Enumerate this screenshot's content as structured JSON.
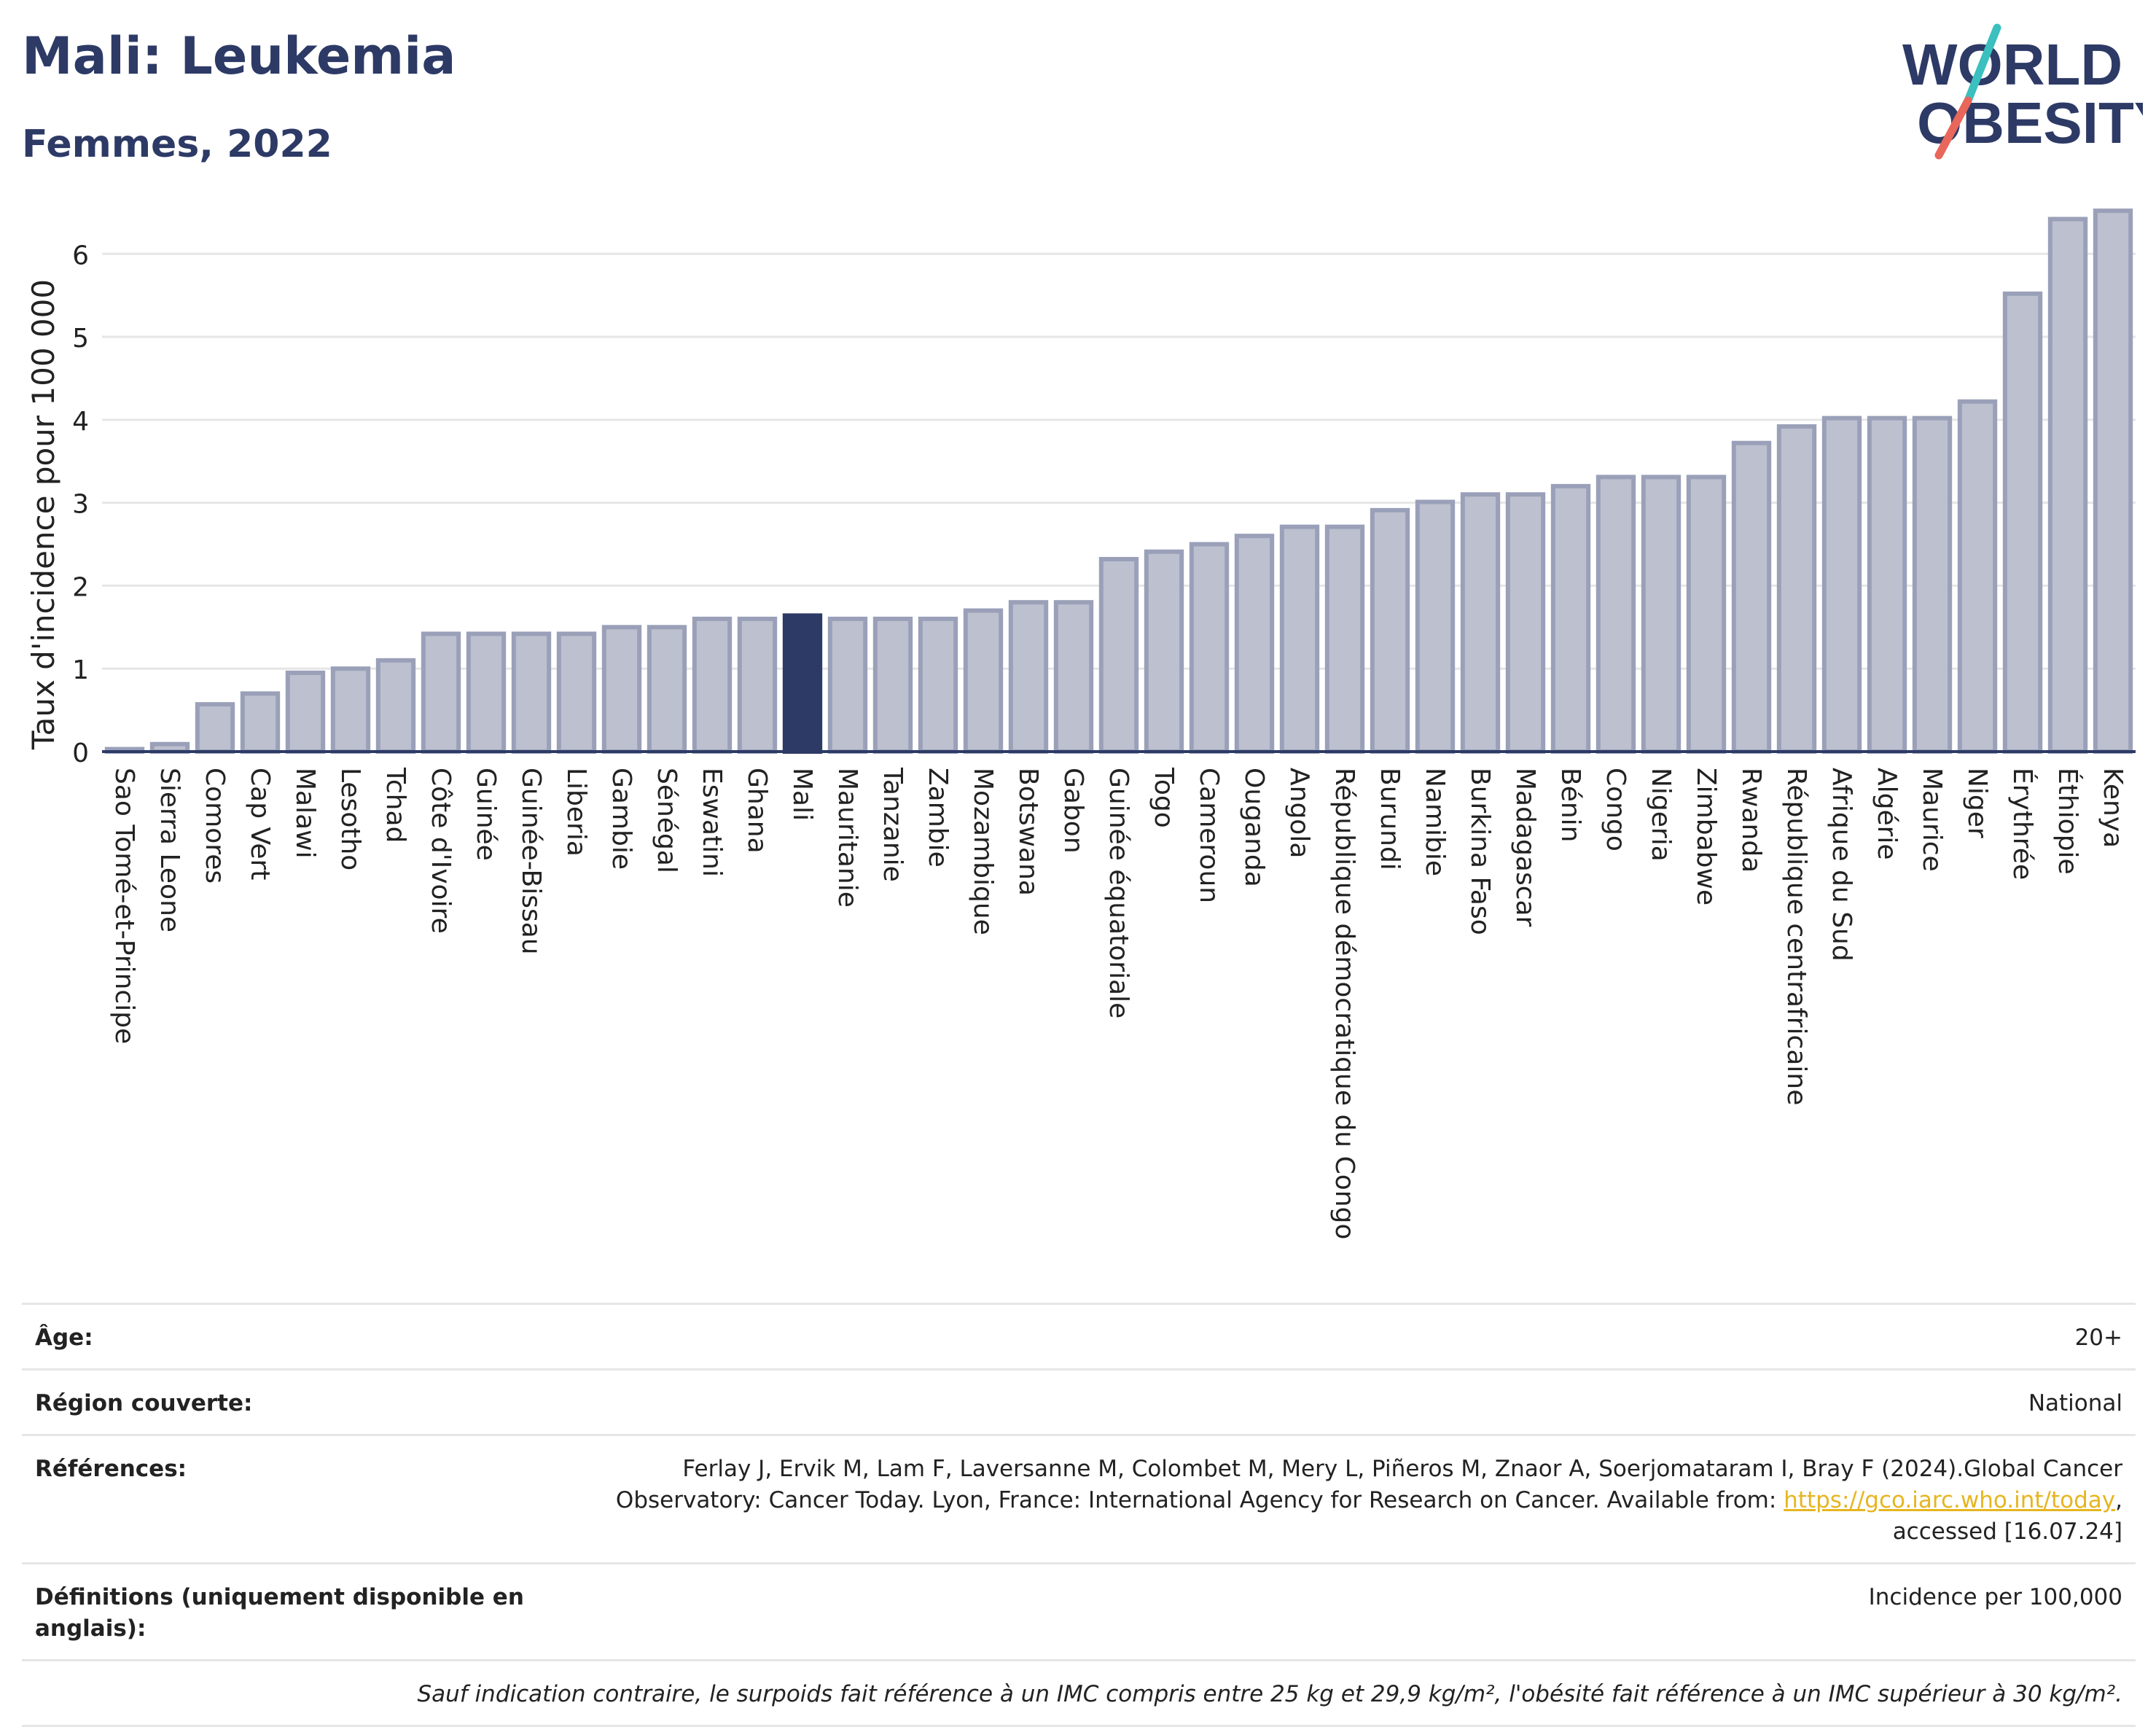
{
  "title": "Mali: Leukemia",
  "subtitle": "Femmes, 2022",
  "logo": {
    "line1_pre": "W",
    "line1_post": "RLD",
    "line2_pre": "",
    "line2_post": "BESITY",
    "o_letter": "O",
    "colors": {
      "text": "#2d3a66",
      "slash_teal": "#3bbfbf",
      "slash_red": "#e8665a"
    }
  },
  "chart_data": {
    "type": "bar",
    "ylabel": "Taux d'incidence pour 100 000",
    "ylim": [
      0,
      6.6
    ],
    "yticks": [
      0,
      1,
      2,
      3,
      4,
      5,
      6
    ],
    "grid": true,
    "highlight": "Mali",
    "colors": {
      "bar": "#bcc0cf",
      "bar_border": "#9aa0b8",
      "highlight": "#2d3a66",
      "axis": "#2d3a66",
      "grid": "#e6e6e6"
    },
    "categories": [
      "Sao Tomé-et-Principe",
      "Sierra Leone",
      "Comores",
      "Cap Vert",
      "Malawi",
      "Lesotho",
      "Tchad",
      "Côte d'Ivoire",
      "Guinée",
      "Guinée-Bissau",
      "Liberia",
      "Gambie",
      "Sénégal",
      "Eswatini",
      "Ghana",
      "Mali",
      "Mauritanie",
      "Tanzanie",
      "Zambie",
      "Mozambique",
      "Botswana",
      "Gabon",
      "Guinée équatoriale",
      "Togo",
      "Cameroun",
      "Ouganda",
      "Angola",
      "République démocratique du Congo",
      "Burundi",
      "Namibie",
      "Burkina Faso",
      "Madagascar",
      "Bénin",
      "Congo",
      "Nigeria",
      "Zimbabwe",
      "Rwanda",
      "République centrafricaine",
      "Afrique du Sud",
      "Algérie",
      "Maurice",
      "Niger",
      "Érythrée",
      "Éthiopie",
      "Kenya"
    ],
    "values": [
      0.03,
      0.09,
      0.57,
      0.7,
      0.95,
      1.0,
      1.1,
      1.42,
      1.42,
      1.42,
      1.42,
      1.5,
      1.5,
      1.6,
      1.6,
      1.64,
      1.6,
      1.6,
      1.6,
      1.7,
      1.8,
      1.8,
      2.32,
      2.41,
      2.5,
      2.6,
      2.71,
      2.71,
      2.91,
      3.01,
      3.1,
      3.1,
      3.2,
      3.31,
      3.31,
      3.31,
      3.72,
      3.92,
      4.02,
      4.02,
      4.02,
      4.22,
      5.52,
      6.42,
      6.52
    ]
  },
  "meta": {
    "age_label": "Âge:",
    "age_value": "20+",
    "region_label": "Région couverte:",
    "region_value": "National",
    "references_label": "Références:",
    "references_text1": "Ferlay J, Ervik M, Lam F, Laversanne M, Colombet M, Mery L, Piñeros M, Znaor A, Soerjomataram I, Bray F (2024).Global Cancer",
    "references_text2": "Observatory: Cancer Today. Lyon, France: International Agency for Research on Cancer. Available from: ",
    "references_link": "https://gco.iarc.who.int/today",
    "references_text3": ",",
    "references_text4": "accessed [16.07.24]",
    "definitions_label": "Définitions (uniquement disponible en anglais):",
    "definitions_value": "Incidence per 100,000",
    "note": "Sauf indication contraire, le surpoids fait référence à un IMC compris entre 25 kg et 29,9 kg/m², l'obésité fait référence à un IMC supérieur à 30 kg/m²."
  }
}
